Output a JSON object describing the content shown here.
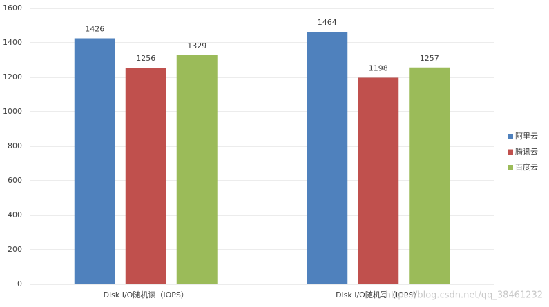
{
  "chart_data": {
    "type": "bar",
    "categories": [
      "Disk I/O随机读（IOPS）",
      "Disk I/O随机写（IOPS）"
    ],
    "series": [
      {
        "name": "阿里云",
        "color": "#4f81bd",
        "values": [
          1426,
          1464
        ]
      },
      {
        "name": "腾讯云",
        "color": "#c0504d",
        "values": [
          1256,
          1198
        ]
      },
      {
        "name": "百度云",
        "color": "#9bbb59",
        "values": [
          1329,
          1257
        ]
      }
    ],
    "ylim": [
      0,
      1600
    ],
    "yticks": [
      0,
      200,
      400,
      600,
      800,
      1000,
      1200,
      1400,
      1600
    ],
    "grid": true,
    "legend": "right",
    "data_labels": true,
    "watermark": "https://blog.csdn.net/qq_38461232"
  }
}
